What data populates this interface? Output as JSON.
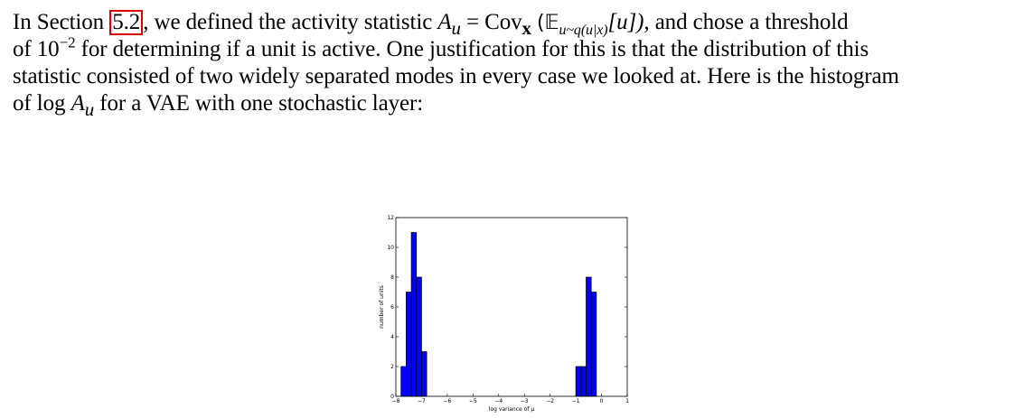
{
  "paragraph": {
    "l1_a": "In Section",
    "ref": "5.2",
    "l1_b": ", we defined the activity statistic",
    "l1_math": "A",
    "l1_math_sub": "u",
    "l1_eq": " = Cov",
    "l1_cov_sub": "x",
    "l1_E": "(𝔼",
    "l1_E_sub": "u~q(u|x)",
    "l1_E_arg": "[u]),",
    "l1_c": "and chose a threshold",
    "l2_a": "of 10",
    "l2_sup": "−2",
    "l2_b": "for determining if a unit is active.  One justification for this is that the distribution of this",
    "l3": "statistic consisted of two widely separated modes in every case we looked at. Here is the histogram",
    "l4_a": "of log",
    "l4_math": "A",
    "l4_math_sub": "u",
    "l4_b": "for a VAE with one stochastic layer:"
  },
  "chart_data": {
    "type": "bar",
    "xlabel": "log variance of μ",
    "ylabel": "number of units",
    "xlim": [
      -8,
      1
    ],
    "ylim": [
      0,
      12
    ],
    "xticks": [
      -8,
      -7,
      -6,
      -5,
      -4,
      -3,
      -2,
      -1,
      0,
      1
    ],
    "yticks": [
      0,
      2,
      4,
      6,
      8,
      10,
      12
    ],
    "bar_color": "#0000ff",
    "bin_width": 0.2,
    "bins": [
      {
        "x0": -7.8,
        "value": 2
      },
      {
        "x0": -7.6,
        "value": 7
      },
      {
        "x0": -7.4,
        "value": 11
      },
      {
        "x0": -7.2,
        "value": 8
      },
      {
        "x0": -7.0,
        "value": 3
      },
      {
        "x0": -1.0,
        "value": 2
      },
      {
        "x0": -0.8,
        "value": 2
      },
      {
        "x0": -0.6,
        "value": 8
      },
      {
        "x0": -0.4,
        "value": 7
      }
    ]
  }
}
